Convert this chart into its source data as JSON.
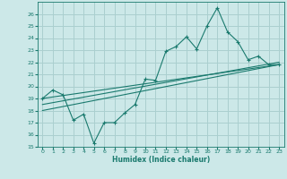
{
  "background_color": "#cce8e8",
  "grid_color": "#aacfcf",
  "line_color": "#1a7a6e",
  "xlabel": "Humidex (Indice chaleur)",
  "xlim": [
    -0.5,
    23.5
  ],
  "ylim": [
    15,
    27
  ],
  "yticks": [
    15,
    16,
    17,
    18,
    19,
    20,
    21,
    22,
    23,
    24,
    25,
    26
  ],
  "xticks": [
    0,
    1,
    2,
    3,
    4,
    5,
    6,
    7,
    8,
    9,
    10,
    11,
    12,
    13,
    14,
    15,
    16,
    17,
    18,
    19,
    20,
    21,
    22,
    23
  ],
  "line1_x": [
    0,
    1,
    2,
    3,
    4,
    5,
    6,
    7,
    8,
    9,
    10,
    11,
    12,
    13,
    14,
    15,
    16,
    17,
    18,
    19,
    20,
    21,
    22,
    23
  ],
  "line1_y": [
    19.0,
    19.7,
    19.3,
    17.2,
    17.7,
    15.3,
    17.0,
    17.0,
    17.8,
    18.5,
    20.6,
    20.5,
    22.9,
    23.3,
    24.1,
    23.1,
    25.0,
    26.5,
    24.5,
    23.7,
    22.2,
    22.5,
    21.8,
    21.8
  ],
  "line2_x": [
    0,
    23
  ],
  "line2_y": [
    19.0,
    21.8
  ],
  "line3_x": [
    0,
    23
  ],
  "line3_y": [
    18.5,
    22.0
  ],
  "line4_x": [
    0,
    23
  ],
  "line4_y": [
    18.0,
    21.8
  ]
}
